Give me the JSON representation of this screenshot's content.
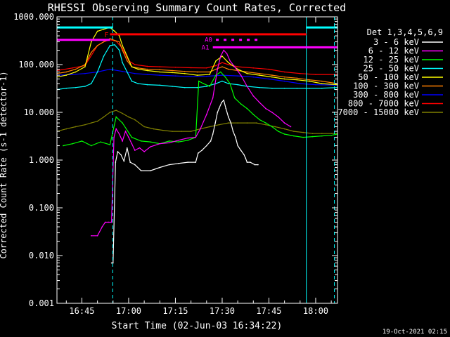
{
  "chart_data": {
    "type": "line",
    "title": "RHESSI Observing Summary Count Rates, Corrected",
    "xlabel": "Start Time (02-Jun-03 16:34:22)",
    "ylabel": "Corrected Count Rate (s-1 detector-1)",
    "y_scale": "log",
    "ylim": [
      0.001,
      1000
    ],
    "xlim_minutes": [
      37,
      127
    ],
    "x_ticks": [
      {
        "label": "16:45",
        "minute": 45
      },
      {
        "label": "17:00",
        "minute": 60
      },
      {
        "label": "17:15",
        "minute": 75
      },
      {
        "label": "17:30",
        "minute": 90
      },
      {
        "label": "17:45",
        "minute": 105
      },
      {
        "label": "18:00",
        "minute": 120
      }
    ],
    "y_ticks": [
      "0.001",
      "0.010",
      "0.100",
      "1.000",
      "10.000",
      "100.000",
      "1000.000"
    ],
    "y_tick_values": [
      0.001,
      0.01,
      0.1,
      1,
      10,
      100,
      1000
    ],
    "legend_title": "Det 1,3,4,5,6,9",
    "legend_position": "right",
    "series": [
      {
        "name": "3 - 6 keV",
        "color": "#ffffff",
        "x": [
          54.5,
          55.0,
          55.8,
          56.5,
          57.5,
          58.5,
          59.5,
          60.5,
          62.0,
          64.0,
          67.0,
          70.0,
          73.0,
          76.0,
          79.0,
          81.5,
          82.3,
          83.5,
          85.0,
          86.3,
          87.0,
          87.8,
          88.5,
          89.0,
          89.8,
          90.5,
          91.2,
          92.0,
          92.8,
          93.5,
          94.3,
          95.0,
          96.0,
          97.0,
          97.5,
          98.0,
          99.0,
          100.5,
          101.5
        ],
        "y": [
          0.007,
          0.007,
          0.9,
          1.5,
          1.3,
          0.95,
          1.8,
          0.9,
          0.8,
          0.6,
          0.6,
          0.7,
          0.8,
          0.85,
          0.9,
          0.9,
          1.4,
          1.6,
          2.0,
          2.5,
          3.5,
          6,
          10,
          12,
          16,
          18,
          12,
          8,
          6,
          4,
          3,
          2,
          1.6,
          1.3,
          1.1,
          0.9,
          0.9,
          0.8,
          0.8
        ]
      },
      {
        "name": "6 - 12 keV",
        "color": "#ff00ff",
        "x": [
          48.0,
          50.0,
          51.5,
          52.5,
          53.5,
          54.5,
          55.3,
          56.0,
          57.0,
          58.0,
          59.0,
          60.0,
          61.0,
          62.0,
          63.5,
          65.0,
          67.0,
          70.0,
          73.0,
          76.0,
          79.0,
          81.5,
          83.0,
          85.0,
          87.0,
          88.5,
          89.5,
          90.5,
          91.5,
          92.5,
          94.0,
          96.0,
          98.0,
          100.0,
          102.0,
          104.0,
          106.0,
          108.0,
          110.0,
          112.0
        ],
        "y": [
          0.026,
          0.026,
          0.04,
          0.05,
          0.05,
          0.05,
          3.0,
          4.5,
          3.5,
          2.5,
          4.0,
          3.0,
          2.2,
          1.6,
          1.8,
          1.5,
          1.9,
          2.2,
          2.3,
          2.6,
          2.9,
          3.0,
          4.5,
          9,
          20,
          80,
          150,
          200,
          170,
          120,
          90,
          60,
          35,
          22,
          16,
          12,
          10,
          8,
          6,
          5
        ]
      },
      {
        "name": "12 - 25 keV",
        "color": "#00ff00",
        "x": [
          39,
          42,
          45,
          48,
          51,
          54,
          56,
          58,
          61,
          64,
          67,
          70,
          73,
          76,
          79,
          81.5,
          82.5,
          84,
          86,
          88,
          89.5,
          91,
          92.5,
          94,
          96,
          98,
          100,
          102,
          104,
          106,
          108,
          110,
          113,
          116,
          119,
          122,
          125,
          127
        ],
        "y": [
          2,
          2.2,
          2.5,
          2,
          2.4,
          2.1,
          8,
          6,
          3,
          2.5,
          2.4,
          2.2,
          2.5,
          2.4,
          2.6,
          3,
          45,
          40,
          35,
          60,
          70,
          55,
          40,
          20,
          15,
          12,
          9,
          7,
          6,
          5,
          4,
          3.5,
          3.2,
          3,
          3.1,
          3.2,
          3.3,
          3.5
        ]
      },
      {
        "name": "25 - 50 keV",
        "color": "#00ffff",
        "x": [
          37,
          40,
          43,
          46,
          48,
          50,
          52,
          54,
          55.5,
          57,
          58,
          59.5,
          61,
          63,
          66,
          70,
          74,
          78,
          82,
          85,
          88,
          90,
          92,
          95,
          98,
          102,
          106,
          110,
          114,
          118,
          122,
          127
        ],
        "y": [
          30,
          32,
          33,
          35,
          40,
          70,
          150,
          250,
          260,
          200,
          110,
          70,
          45,
          40,
          38,
          37,
          35,
          33,
          33,
          35,
          40,
          45,
          40,
          38,
          35,
          33,
          32,
          32,
          32,
          32,
          32,
          33
        ]
      },
      {
        "name": "50 - 100 keV",
        "color": "#ffff00",
        "x": [
          37,
          40,
          43,
          46,
          48,
          50,
          52,
          54,
          55.5,
          57,
          58,
          59.5,
          61,
          63,
          66,
          70,
          74,
          78,
          82,
          86,
          88,
          90,
          92,
          95,
          98,
          102,
          106,
          110,
          114,
          118,
          122,
          127
        ],
        "y": [
          55,
          60,
          70,
          90,
          300,
          500,
          550,
          600,
          500,
          400,
          250,
          150,
          90,
          80,
          75,
          70,
          68,
          65,
          60,
          62,
          120,
          150,
          110,
          80,
          65,
          60,
          55,
          50,
          48,
          45,
          40,
          38
        ]
      },
      {
        "name": "100 - 300 keV",
        "color": "#ff8000",
        "x": [
          37,
          40,
          43,
          46,
          48,
          50,
          52,
          54,
          55.5,
          57,
          58,
          59.5,
          61,
          63,
          66,
          70,
          74,
          78,
          82,
          86,
          88,
          90,
          92,
          95,
          98,
          102,
          106,
          110,
          114,
          118,
          122,
          127
        ],
        "y": [
          65,
          70,
          80,
          100,
          180,
          250,
          300,
          350,
          320,
          300,
          200,
          120,
          90,
          85,
          80,
          78,
          75,
          72,
          70,
          70,
          80,
          90,
          80,
          75,
          70,
          65,
          60,
          55,
          52,
          48,
          45,
          40
        ]
      },
      {
        "name": "300 - 800 keV",
        "color": "#0000ff",
        "x": [
          37,
          42,
          46,
          50,
          54,
          58,
          62,
          66,
          70,
          75,
          80,
          85,
          90,
          95,
          100,
          105,
          110,
          115,
          120,
          127
        ],
        "y": [
          60,
          62,
          65,
          70,
          80,
          72,
          65,
          62,
          60,
          58,
          56,
          57,
          60,
          58,
          55,
          50,
          45,
          40,
          38,
          37
        ]
      },
      {
        "name": "800 - 7000 keV",
        "color": "#ff0000",
        "x": [
          37,
          42,
          46,
          50,
          52,
          54,
          56,
          58,
          60,
          62,
          66,
          70,
          75,
          80,
          85,
          88,
          90,
          92,
          95,
          100,
          105,
          110,
          115,
          120,
          127
        ],
        "y": [
          75,
          85,
          95,
          250,
          300,
          330,
          310,
          220,
          120,
          100,
          92,
          90,
          88,
          86,
          85,
          95,
          110,
          100,
          90,
          85,
          80,
          70,
          65,
          62,
          62
        ]
      },
      {
        "name": "7000 - 15000 keV",
        "color": "#808000",
        "x": [
          37,
          40,
          43,
          46,
          48,
          50,
          52,
          54,
          56,
          58,
          60,
          62,
          65,
          68,
          71,
          74,
          77,
          80,
          83,
          86,
          89,
          92,
          95,
          98,
          101,
          104,
          107,
          110,
          113,
          116,
          119,
          122,
          125,
          127
        ],
        "y": [
          4,
          4.5,
          5,
          5.5,
          6,
          6.5,
          8,
          10,
          11,
          9.5,
          8,
          7,
          5,
          4.5,
          4.2,
          4,
          4,
          4,
          4.5,
          5,
          5.5,
          6,
          6,
          6,
          6,
          5.5,
          5,
          4.5,
          4,
          3.8,
          3.6,
          3.6,
          3.6,
          3.6
        ]
      }
    ],
    "attenuator_states": [
      {
        "label": "A0",
        "minute_start": 88,
        "minute_end": 102,
        "level": 330
      },
      {
        "label": "A1",
        "minute_start": 87,
        "minute_end": 127,
        "level": 230
      }
    ],
    "flare_flag": {
      "label": "F",
      "minute_start": 54,
      "minute_end": 117,
      "level": 430
    },
    "night_marker_minutes": [
      54.9,
      126
    ]
  },
  "footer": {
    "date": "19-Oct-2021 02:15"
  }
}
